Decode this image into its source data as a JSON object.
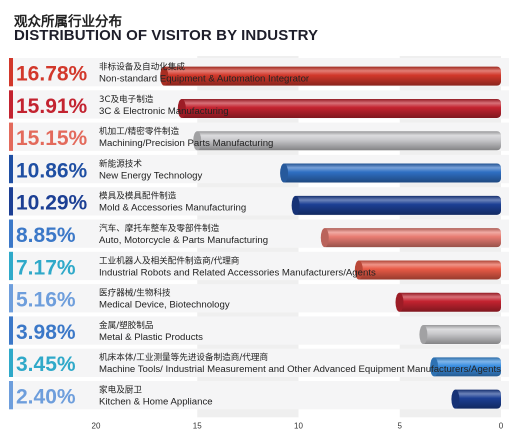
{
  "title_cn": "观众所属行业分布",
  "title_en": "DISTRIBUTION OF VISITOR BY INDUSTRY",
  "chart_data": {
    "type": "bar",
    "orientation": "horizontal",
    "x_reversed": true,
    "xlim": [
      0,
      20
    ],
    "xticks": [
      "20",
      "15",
      "10",
      "5",
      "0"
    ],
    "grid": false,
    "categories": [
      {
        "pct_label": "16.78%",
        "label_cn": "非标设备及自动化集成",
        "label_en": "Non-standard Equipment & Automation Integrator",
        "value": 16.78,
        "color": "#d2382b",
        "text_color": "#d2382b"
      },
      {
        "pct_label": "15.91%",
        "label_cn": "3C及电子制造",
        "label_en": "3C & Electronic Manufacturing",
        "value": 15.91,
        "color": "#c32330",
        "text_color": "#c32330"
      },
      {
        "pct_label": "15.15%",
        "label_cn": "机加工/精密零件制造",
        "label_en": "Machining/Precision Parts Manufacturing",
        "value": 15.15,
        "color": "#c9c9cc",
        "text_color": "#e36a5c"
      },
      {
        "pct_label": "10.86%",
        "label_cn": "新能源技术",
        "label_en": "New Energy Technology",
        "value": 10.86,
        "color": "#2f6fc3",
        "text_color": "#1f4fa3"
      },
      {
        "pct_label": "10.29%",
        "label_cn": "模具及模具配件制造",
        "label_en": "Mold & Accessories Manufacturing",
        "value": 10.29,
        "color": "#1c3f94",
        "text_color": "#1c3f94"
      },
      {
        "pct_label": "8.85%",
        "label_cn": "汽车、摩托车整车及零部件制造",
        "label_en": "Auto, Motorcycle & Parts Manufacturing",
        "value": 8.85,
        "color": "#e87c72",
        "text_color": "#3b78c8"
      },
      {
        "pct_label": "7.17%",
        "label_cn": "工业机器人及相关配件制造商/代理商",
        "label_en": "Industrial Robots and Related Accessories Manufacturers/Agents",
        "value": 7.17,
        "color": "#e85a46",
        "text_color": "#2fa9c9"
      },
      {
        "pct_label": "5.16%",
        "label_cn": "医疗器械/生物科技",
        "label_en": "Medical Device, Biotechnology",
        "value": 5.16,
        "color": "#c32330",
        "text_color": "#6e9edc"
      },
      {
        "pct_label": "3.98%",
        "label_cn": "金属/塑胶制品",
        "label_en": "Metal & Plastic Products",
        "value": 3.98,
        "color": "#c9c9cc",
        "text_color": "#3b78c8"
      },
      {
        "pct_label": "3.45%",
        "label_cn": "机床本体/工业测量等先进设备制造商/代理商",
        "label_en": "Machine Tools/ Industrial Measurement and Other Advanced Equipment Manufacturers/Agents",
        "value": 3.45,
        "color": "#3a8ee0",
        "text_color": "#2fa9c9"
      },
      {
        "pct_label": "2.40%",
        "label_cn": "家电及厨卫",
        "label_en": "Kitchen & Home Appliance",
        "value": 2.4,
        "color": "#1c3f94",
        "text_color": "#6e9edc"
      }
    ]
  }
}
